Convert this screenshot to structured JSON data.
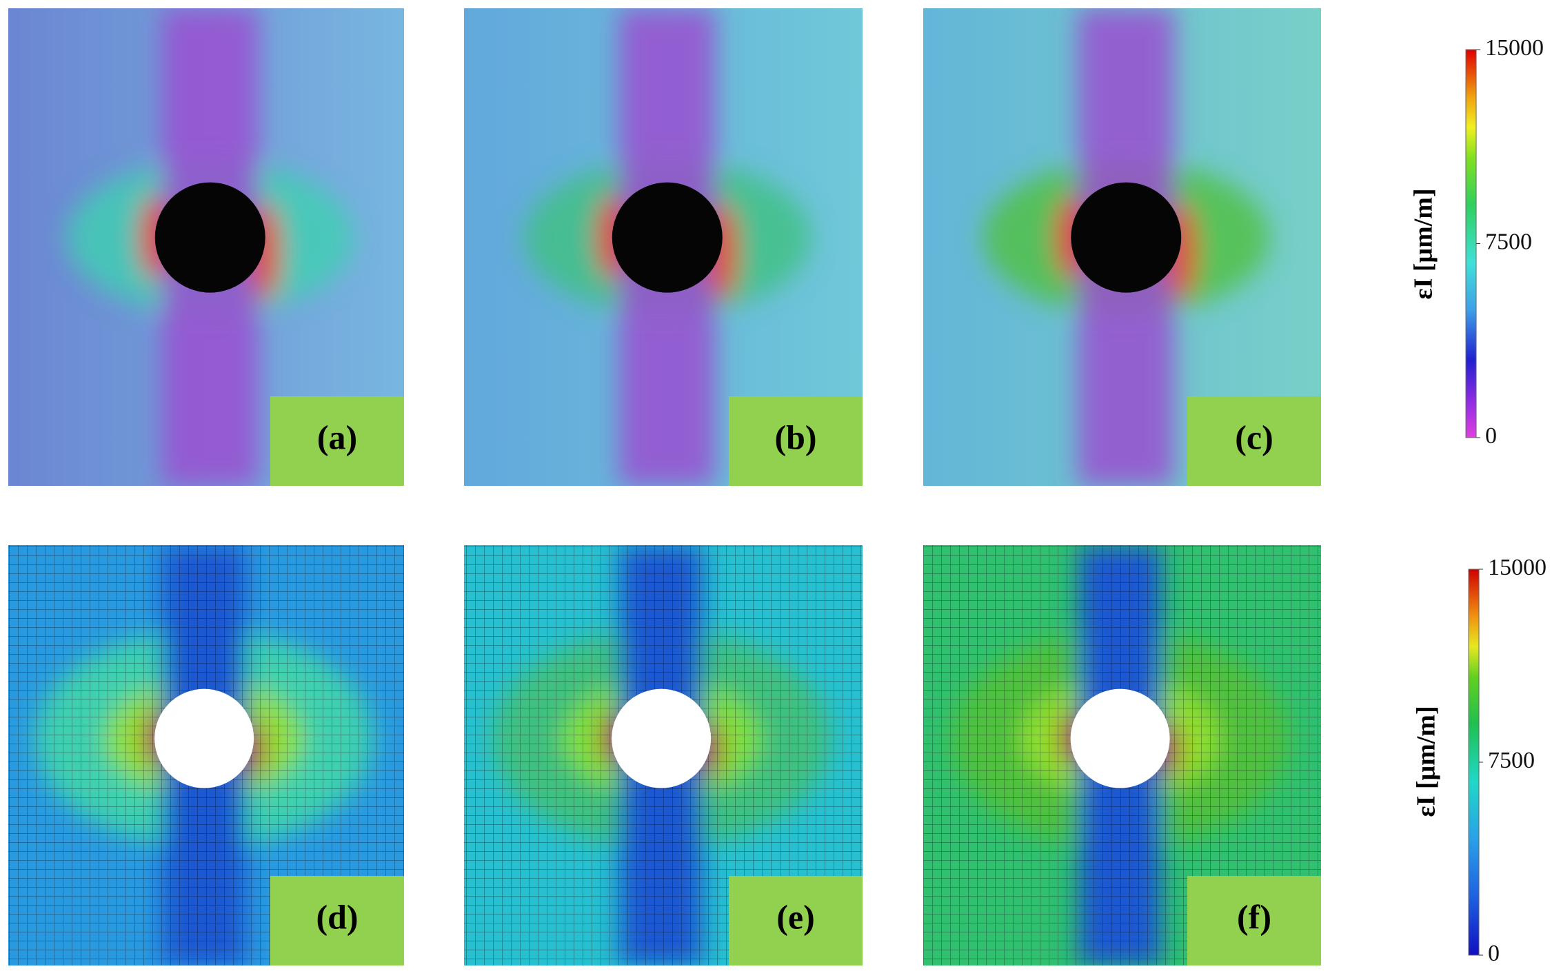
{
  "panels": [
    {
      "label": "(a)"
    },
    {
      "label": "(b)"
    },
    {
      "label": "(c)"
    },
    {
      "label": "(d)"
    },
    {
      "label": "(e)"
    },
    {
      "label": "(f)"
    }
  ],
  "colorbars": [
    {
      "label": "εI [μm/m]",
      "ticks": [
        15000,
        7500,
        0
      ]
    },
    {
      "label": "εI [μm/m]",
      "ticks": [
        15000,
        7500,
        0
      ]
    }
  ]
}
